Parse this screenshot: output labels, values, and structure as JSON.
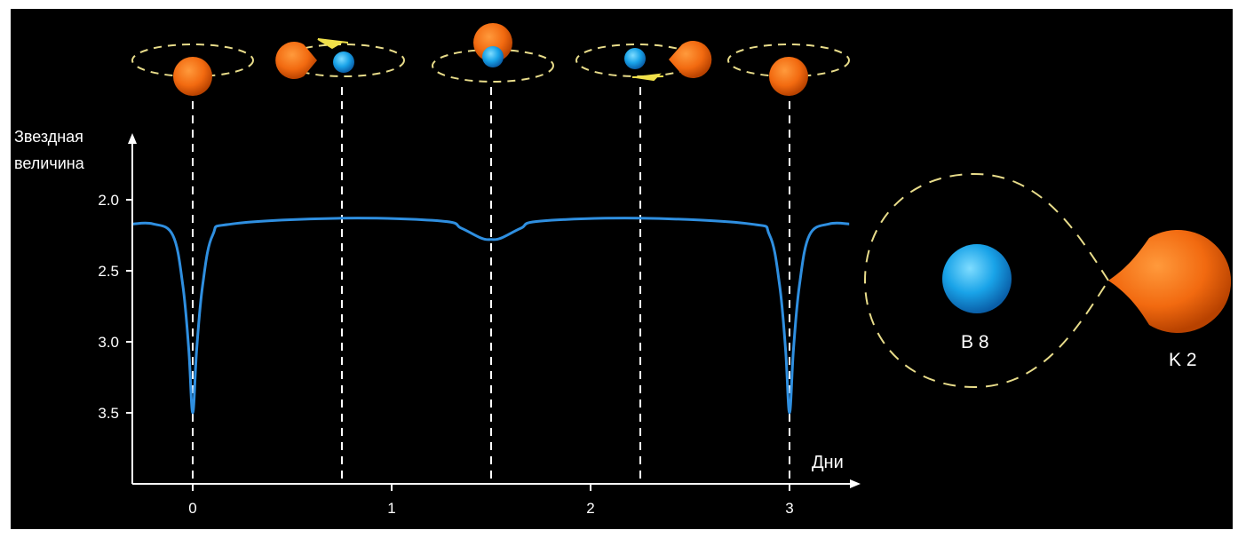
{
  "y_axis_label_line1": "Звездная",
  "y_axis_label_line2": "величина",
  "x_axis_label": "Дни",
  "y_ticks": [
    "2.0",
    "2.5",
    "3.0",
    "3.5"
  ],
  "x_ticks": [
    "0",
    "1",
    "2",
    "3"
  ],
  "star_labels": {
    "hot_star": "B 8",
    "cool_star": "K 2"
  },
  "colors": {
    "background": "#000000",
    "curve": "#2f8fe0",
    "axis": "#ffffff",
    "orbit": "#e8dc8a",
    "hot_star": "#19a3e8",
    "cool_star": "#ff7a1a",
    "arrow": "#f0e04a"
  },
  "chart_data": {
    "type": "line",
    "xlabel": "Дни",
    "ylabel": "Звездная величина",
    "ylim": [
      3.5,
      2.0
    ],
    "y_inverted": true,
    "xlim": [
      -0.3,
      3.5
    ],
    "series": [
      {
        "x": [
          -0.3,
          -0.2,
          -0.1,
          -0.05,
          -0.02,
          0.0,
          0.02,
          0.05,
          0.1,
          0.2,
          0.75,
          1.25,
          1.35,
          1.45,
          1.5,
          1.55,
          1.65,
          1.75,
          2.25,
          2.8,
          2.9,
          2.95,
          2.98,
          3.0,
          3.02,
          3.05,
          3.1,
          3.2,
          3.3
        ],
        "y": [
          2.17,
          2.17,
          2.25,
          2.6,
          3.05,
          3.5,
          3.05,
          2.6,
          2.25,
          2.17,
          2.13,
          2.15,
          2.2,
          2.27,
          2.28,
          2.27,
          2.2,
          2.15,
          2.13,
          2.17,
          2.25,
          2.6,
          3.05,
          3.5,
          3.05,
          2.6,
          2.25,
          2.17,
          2.17
        ]
      }
    ],
    "markers_x": [
      0,
      0.75,
      1.5,
      2.25,
      3.0
    ]
  }
}
